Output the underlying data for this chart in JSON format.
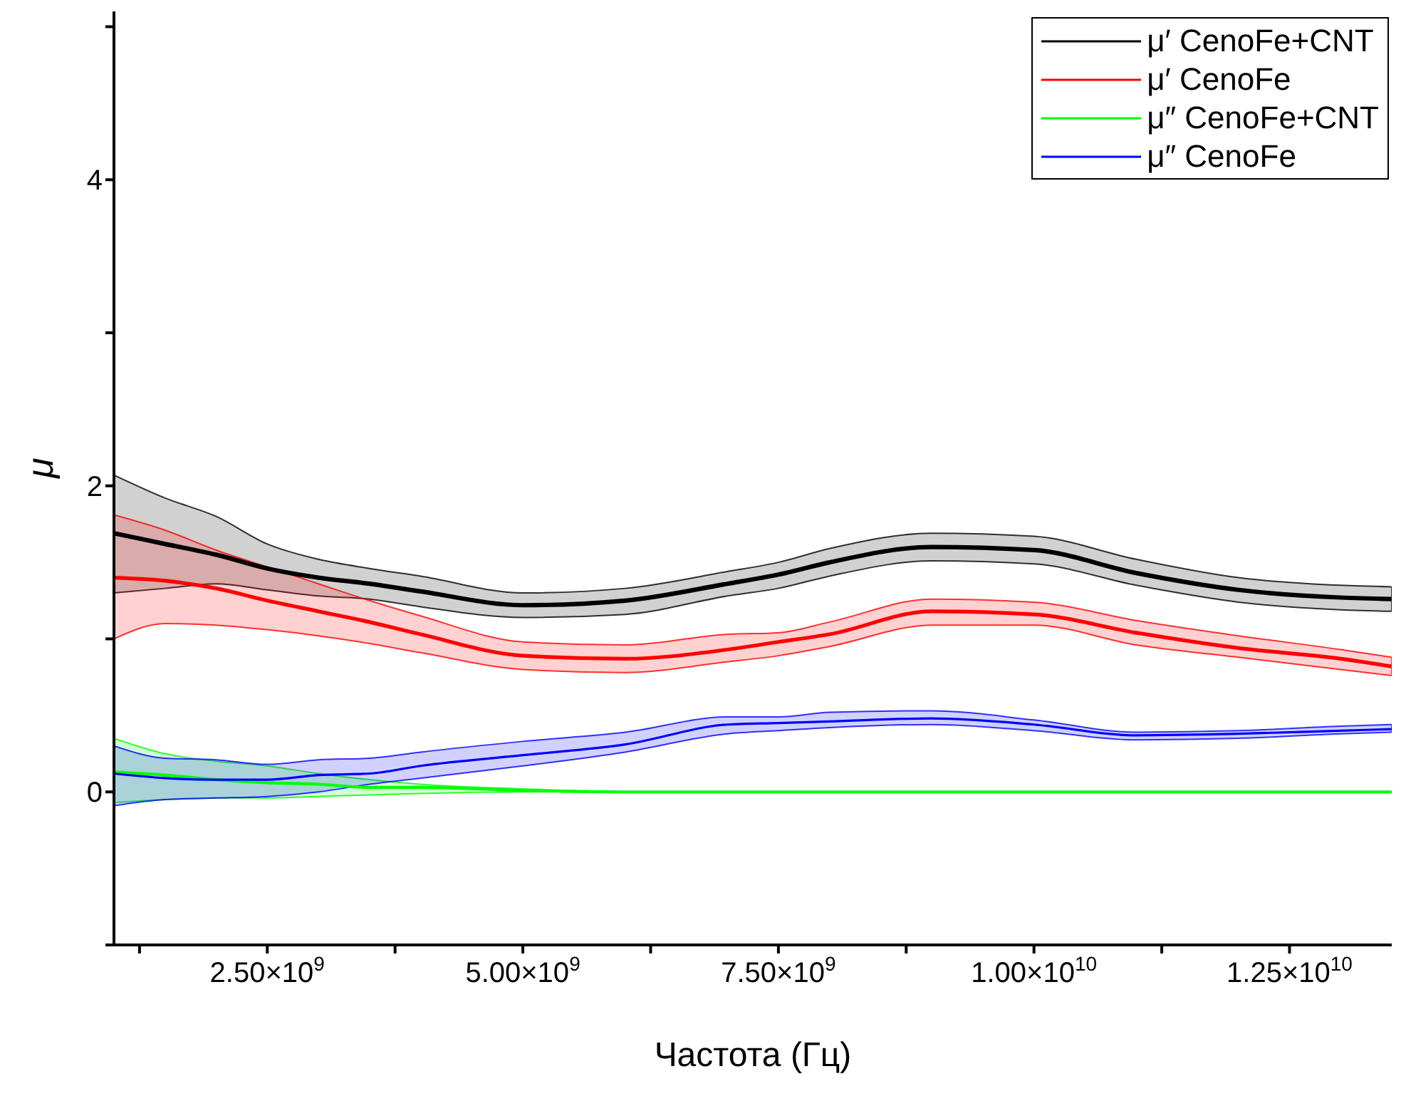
{
  "chart_data": {
    "type": "line",
    "xlabel": "Частота (Гц)",
    "ylabel": "μ",
    "x": [
      1000000000.0,
      1500000000.0,
      2000000000.0,
      2500000000.0,
      3000000000.0,
      3500000000.0,
      4000000000.0,
      5000000000.0,
      6000000000.0,
      7000000000.0,
      7500000000.0,
      8000000000.0,
      9000000000.0,
      10000000000.0,
      11000000000.0,
      12000000000.0,
      13000000000.0,
      13500000000.0
    ],
    "series": [
      {
        "name": "μ′ CenoFe+CNT",
        "color": "#000000",
        "values": [
          1.69,
          1.62,
          1.55,
          1.46,
          1.4,
          1.36,
          1.31,
          1.22,
          1.25,
          1.36,
          1.42,
          1.5,
          1.6,
          1.58,
          1.43,
          1.32,
          1.27,
          1.26
        ],
        "lower": [
          1.3,
          1.33,
          1.36,
          1.32,
          1.28,
          1.26,
          1.21,
          1.14,
          1.16,
          1.28,
          1.33,
          1.41,
          1.51,
          1.49,
          1.35,
          1.24,
          1.19,
          1.18
        ],
        "upper": [
          2.07,
          1.92,
          1.8,
          1.62,
          1.52,
          1.46,
          1.41,
          1.3,
          1.33,
          1.44,
          1.5,
          1.59,
          1.69,
          1.67,
          1.52,
          1.4,
          1.35,
          1.34
        ]
      },
      {
        "name": "μ′ CenoFe",
        "color": "#ff0000",
        "values": [
          1.4,
          1.38,
          1.33,
          1.25,
          1.18,
          1.11,
          1.03,
          0.89,
          0.87,
          0.93,
          0.98,
          1.03,
          1.18,
          1.16,
          1.04,
          0.94,
          0.87,
          0.82
        ],
        "lower": [
          1.0,
          1.1,
          1.09,
          1.06,
          1.02,
          0.97,
          0.91,
          0.8,
          0.78,
          0.85,
          0.89,
          0.95,
          1.09,
          1.09,
          0.96,
          0.88,
          0.8,
          0.76
        ],
        "upper": [
          1.81,
          1.71,
          1.58,
          1.47,
          1.36,
          1.25,
          1.15,
          0.98,
          0.96,
          1.03,
          1.04,
          1.11,
          1.26,
          1.24,
          1.12,
          1.02,
          0.93,
          0.88
        ]
      },
      {
        "name": "μ″ CenoFe+CNT",
        "color": "#00ff00",
        "values": [
          0.13,
          0.11,
          0.08,
          0.06,
          0.05,
          0.03,
          0.03,
          0.01,
          0,
          0,
          0,
          0,
          0,
          0,
          0,
          0,
          0,
          0
        ],
        "lower": [
          -0.07,
          -0.05,
          -0.04,
          -0.04,
          -0.03,
          -0.02,
          -0.01,
          0,
          0,
          0,
          0,
          0,
          0,
          0,
          0,
          0,
          0,
          0
        ],
        "upper": [
          0.35,
          0.25,
          0.2,
          0.17,
          0.12,
          0.08,
          0.05,
          0.02,
          0,
          0,
          0,
          0,
          0,
          0,
          0,
          0,
          0,
          0
        ]
      },
      {
        "name": "μ″ CenoFe",
        "color": "#0000ff",
        "values": [
          0.12,
          0.09,
          0.08,
          0.08,
          0.11,
          0.12,
          0.17,
          0.24,
          0.31,
          0.44,
          0.45,
          0.46,
          0.48,
          0.44,
          0.37,
          0.38,
          0.4,
          0.41
        ],
        "lower": [
          -0.09,
          -0.05,
          -0.04,
          -0.03,
          0.0,
          0.05,
          0.09,
          0.17,
          0.26,
          0.38,
          0.4,
          0.42,
          0.44,
          0.4,
          0.34,
          0.35,
          0.38,
          0.39
        ],
        "upper": [
          0.3,
          0.22,
          0.21,
          0.18,
          0.21,
          0.22,
          0.26,
          0.33,
          0.39,
          0.49,
          0.49,
          0.52,
          0.53,
          0.47,
          0.39,
          0.4,
          0.43,
          0.44
        ]
      }
    ],
    "xlim": [
      1000000000.0,
      13500000000.0
    ],
    "xticks": [
      {
        "value": 1250000000.0,
        "label": null
      },
      {
        "value": 2500000000.0,
        "label": "2.50×10$^{9}$"
      },
      {
        "value": 3750000000.0,
        "label": null
      },
      {
        "value": 5000000000.0,
        "label": "5.00×10$^{9}$"
      },
      {
        "value": 6250000000.0,
        "label": null
      },
      {
        "value": 7500000000.0,
        "label": "7.50×10$^{9}$"
      },
      {
        "value": 8750000000.0,
        "label": null
      },
      {
        "value": 10000000000.0,
        "label": "1.00×10$^{10}$"
      },
      {
        "value": 11250000000.0,
        "label": null
      },
      {
        "value": 12500000000.0,
        "label": "1.25×10$^{10}$"
      }
    ],
    "ylim": [
      -1,
      5.1
    ],
    "yticks": [
      {
        "value": -1,
        "label": null
      },
      0,
      {
        "value": 1,
        "label": null
      },
      2,
      {
        "value": 3,
        "label": null
      },
      4,
      {
        "value": 5,
        "label": null
      }
    ],
    "grid": false,
    "legend": "top right",
    "marker": "none",
    "line_style": "solid"
  }
}
